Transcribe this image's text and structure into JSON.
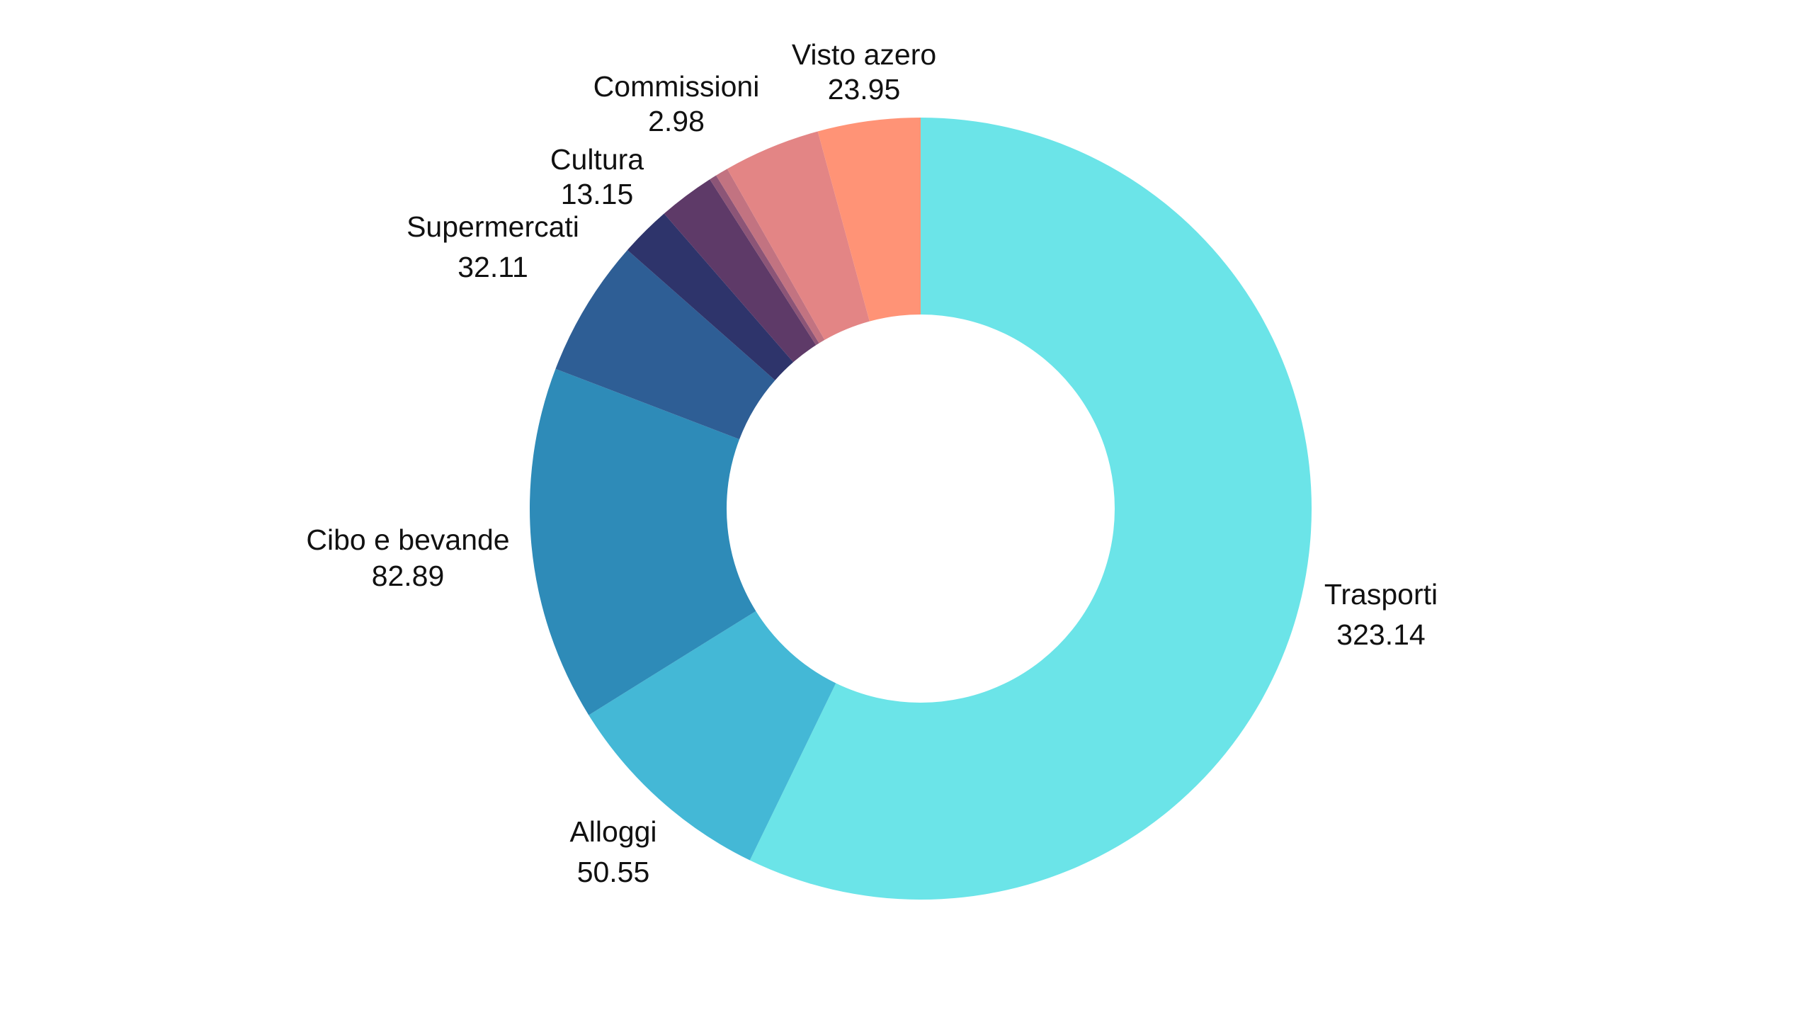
{
  "chart_data": {
    "type": "pie",
    "variant": "donut",
    "title": "",
    "start_angle_deg": 0,
    "direction": "clockwise",
    "slices": [
      {
        "label": "Trasporti",
        "value": 323.14,
        "color": "#6BE4E8"
      },
      {
        "label": "Alloggi",
        "value": 50.55,
        "color": "#44B8D6"
      },
      {
        "label": "Cibo e bevande",
        "value": 82.89,
        "color": "#2E8BB8"
      },
      {
        "label": "Supermercati",
        "value": 32.11,
        "color": "#2E5E95"
      },
      {
        "label": "",
        "value": 11.9,
        "color": "#2E346B"
      },
      {
        "label": "Cultura",
        "value": 13.15,
        "color": "#5E3A68"
      },
      {
        "label": "",
        "value": 1.7,
        "color": "#8C5577"
      },
      {
        "label": "Commissioni",
        "value": 2.98,
        "color": "#C27381"
      },
      {
        "label": "",
        "value": 22.6,
        "color": "#E38585"
      },
      {
        "label": "Visto azero",
        "value": 23.95,
        "color": "#FF9376"
      }
    ]
  }
}
